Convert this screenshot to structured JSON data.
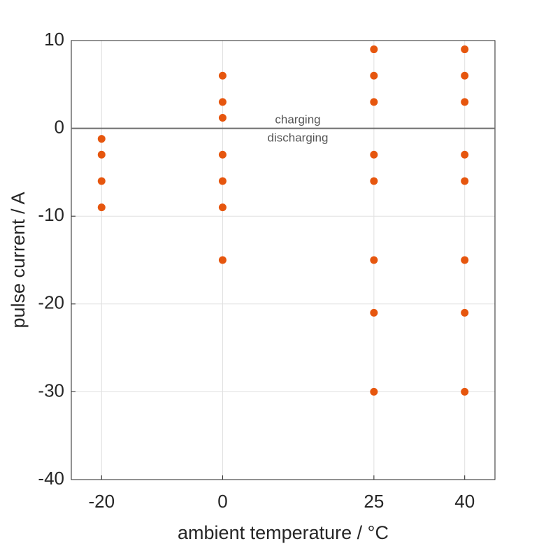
{
  "chart_data": {
    "type": "scatter",
    "xlabel": "ambient temperature / °C",
    "ylabel": "pulse current / A",
    "annotations": [
      "charging",
      "discharging"
    ],
    "x": [
      -20,
      -20,
      -20,
      -20,
      0,
      0,
      0,
      0,
      0,
      0,
      0,
      25,
      25,
      25,
      25,
      25,
      25,
      25,
      25,
      40,
      40,
      40,
      40,
      40,
      40,
      40,
      40
    ],
    "series": [
      {
        "color": "#e6560e",
        "values": [
          -1.2,
          -3,
          -6,
          -9,
          6,
          3,
          1.2,
          -3,
          -6,
          -9,
          -15,
          9,
          6,
          3,
          -3,
          -6,
          -15,
          -21,
          -30,
          9,
          6,
          3,
          -3,
          -6,
          -15,
          -21,
          -30
        ]
      }
    ],
    "xlim": [
      -25,
      45
    ],
    "xticks": [
      -20,
      0,
      25,
      40
    ],
    "ylim": [
      -40,
      10
    ],
    "yticks": [
      -40,
      -30,
      -20,
      -10,
      0,
      10
    ],
    "hline": 0,
    "grid": true
  }
}
